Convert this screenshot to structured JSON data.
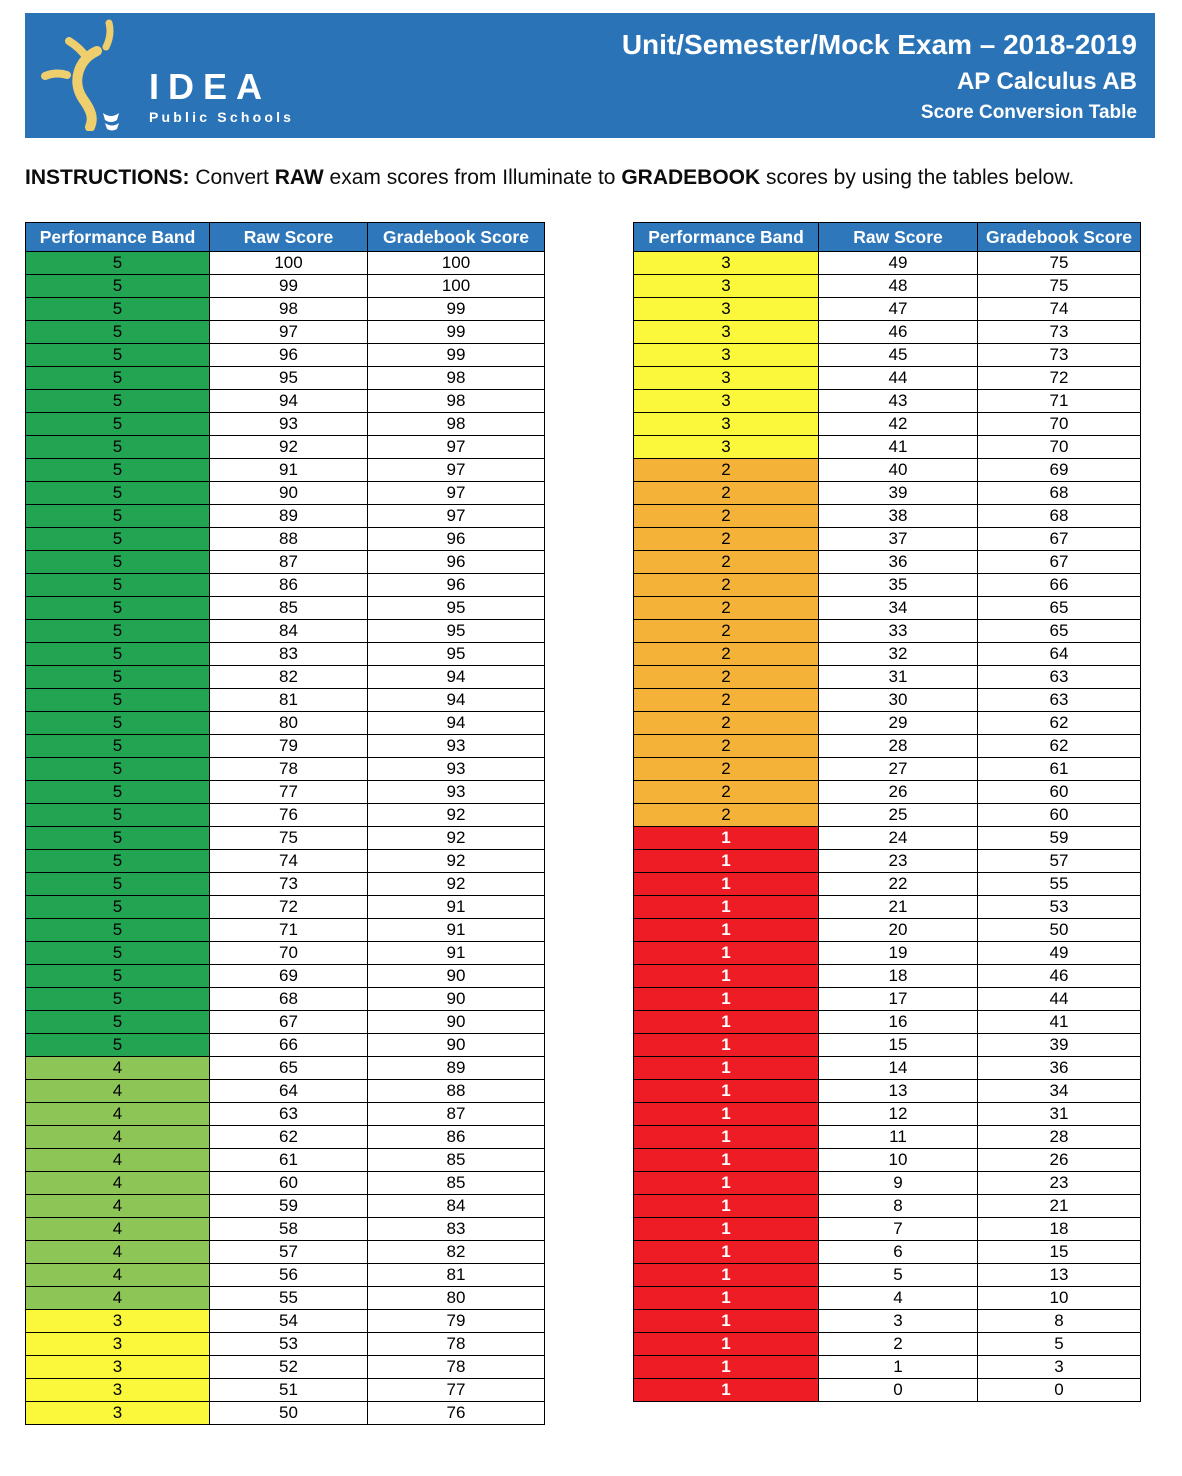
{
  "header": {
    "logo_name": "IDEA",
    "logo_subtitle": "Public Schools",
    "title_line1": "Unit/Semester/Mock Exam – 2018-2019",
    "title_line2": "AP Calculus AB",
    "title_line3": "Score Conversion Table",
    "banner_color": "#2B73B7",
    "logo_bulb_color": "#EFCF6D"
  },
  "instructions": {
    "label": "INSTRUCTIONS:",
    "part1": " Convert ",
    "bold1": "RAW",
    "part2": " exam scores from Illuminate to ",
    "bold2": "GRADEBOOK",
    "part3": " scores by using the tables below."
  },
  "columns": [
    "Performance Band",
    "Raw Score",
    "Gradebook Score"
  ],
  "band_colors": {
    "5": "#23A452",
    "4": "#8DC656",
    "3": "#FBF83B",
    "2": "#F5B238",
    "1": "#EE1C24"
  },
  "band_text_colors": {
    "1": "#FFFFFF"
  },
  "table_header_color": "#2E77BB",
  "tables": {
    "left": {
      "rows": [
        [
          5,
          100,
          100
        ],
        [
          5,
          99,
          100
        ],
        [
          5,
          98,
          99
        ],
        [
          5,
          97,
          99
        ],
        [
          5,
          96,
          99
        ],
        [
          5,
          95,
          98
        ],
        [
          5,
          94,
          98
        ],
        [
          5,
          93,
          98
        ],
        [
          5,
          92,
          97
        ],
        [
          5,
          91,
          97
        ],
        [
          5,
          90,
          97
        ],
        [
          5,
          89,
          97
        ],
        [
          5,
          88,
          96
        ],
        [
          5,
          87,
          96
        ],
        [
          5,
          86,
          96
        ],
        [
          5,
          85,
          95
        ],
        [
          5,
          84,
          95
        ],
        [
          5,
          83,
          95
        ],
        [
          5,
          82,
          94
        ],
        [
          5,
          81,
          94
        ],
        [
          5,
          80,
          94
        ],
        [
          5,
          79,
          93
        ],
        [
          5,
          78,
          93
        ],
        [
          5,
          77,
          93
        ],
        [
          5,
          76,
          92
        ],
        [
          5,
          75,
          92
        ],
        [
          5,
          74,
          92
        ],
        [
          5,
          73,
          92
        ],
        [
          5,
          72,
          91
        ],
        [
          5,
          71,
          91
        ],
        [
          5,
          70,
          91
        ],
        [
          5,
          69,
          90
        ],
        [
          5,
          68,
          90
        ],
        [
          5,
          67,
          90
        ],
        [
          5,
          66,
          90
        ],
        [
          4,
          65,
          89
        ],
        [
          4,
          64,
          88
        ],
        [
          4,
          63,
          87
        ],
        [
          4,
          62,
          86
        ],
        [
          4,
          61,
          85
        ],
        [
          4,
          60,
          85
        ],
        [
          4,
          59,
          84
        ],
        [
          4,
          58,
          83
        ],
        [
          4,
          57,
          82
        ],
        [
          4,
          56,
          81
        ],
        [
          4,
          55,
          80
        ],
        [
          3,
          54,
          79
        ],
        [
          3,
          53,
          78
        ],
        [
          3,
          52,
          78
        ],
        [
          3,
          51,
          77
        ],
        [
          3,
          50,
          76
        ]
      ]
    },
    "right": {
      "rows": [
        [
          3,
          49,
          75
        ],
        [
          3,
          48,
          75
        ],
        [
          3,
          47,
          74
        ],
        [
          3,
          46,
          73
        ],
        [
          3,
          45,
          73
        ],
        [
          3,
          44,
          72
        ],
        [
          3,
          43,
          71
        ],
        [
          3,
          42,
          70
        ],
        [
          3,
          41,
          70
        ],
        [
          2,
          40,
          69
        ],
        [
          2,
          39,
          68
        ],
        [
          2,
          38,
          68
        ],
        [
          2,
          37,
          67
        ],
        [
          2,
          36,
          67
        ],
        [
          2,
          35,
          66
        ],
        [
          2,
          34,
          65
        ],
        [
          2,
          33,
          65
        ],
        [
          2,
          32,
          64
        ],
        [
          2,
          31,
          63
        ],
        [
          2,
          30,
          63
        ],
        [
          2,
          29,
          62
        ],
        [
          2,
          28,
          62
        ],
        [
          2,
          27,
          61
        ],
        [
          2,
          26,
          60
        ],
        [
          2,
          25,
          60
        ],
        [
          1,
          24,
          59
        ],
        [
          1,
          23,
          57
        ],
        [
          1,
          22,
          55
        ],
        [
          1,
          21,
          53
        ],
        [
          1,
          20,
          50
        ],
        [
          1,
          19,
          49
        ],
        [
          1,
          18,
          46
        ],
        [
          1,
          17,
          44
        ],
        [
          1,
          16,
          41
        ],
        [
          1,
          15,
          39
        ],
        [
          1,
          14,
          36
        ],
        [
          1,
          13,
          34
        ],
        [
          1,
          12,
          31
        ],
        [
          1,
          11,
          28
        ],
        [
          1,
          10,
          26
        ],
        [
          1,
          9,
          23
        ],
        [
          1,
          8,
          21
        ],
        [
          1,
          7,
          18
        ],
        [
          1,
          6,
          15
        ],
        [
          1,
          5,
          13
        ],
        [
          1,
          4,
          10
        ],
        [
          1,
          3,
          8
        ],
        [
          1,
          2,
          5
        ],
        [
          1,
          1,
          3
        ],
        [
          1,
          0,
          0
        ]
      ]
    }
  }
}
